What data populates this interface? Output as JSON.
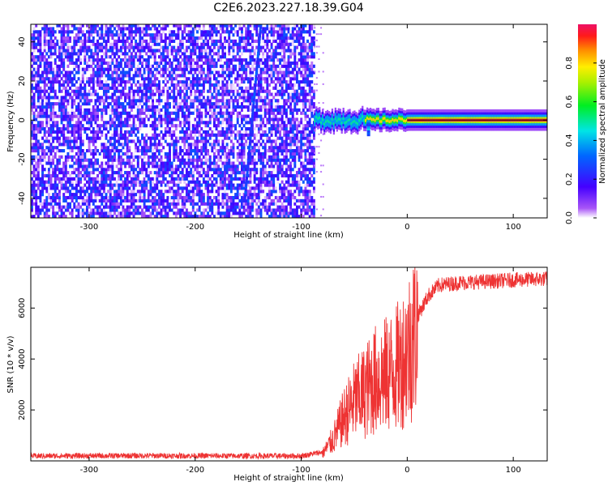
{
  "title": "C2E6.2023.227.18.39.G04",
  "chart_data": [
    {
      "type": "heatmap",
      "xlabel": "Height of straight line (km)",
      "ylabel": "Frequency (Hz)",
      "xlim": [
        -355,
        132
      ],
      "ylim": [
        -50,
        49
      ],
      "xticks": [
        -300,
        -200,
        -100,
        0,
        100
      ],
      "yticks": [
        -40,
        -20,
        0,
        20,
        40
      ],
      "colorbar": {
        "label": "Normalized spectral amplitude",
        "range": [
          0,
          1
        ],
        "ticks": [
          0.0,
          0.2,
          0.4,
          0.6,
          0.8
        ],
        "colormap": "rainbow (white-violet-blue-cyan-green-yellow-red-magenta)"
      },
      "features": {
        "noise_region_x": [
          -355,
          -88
        ],
        "noise_amplitude": [
          0.0,
          0.3
        ],
        "carrier_frequency": 0,
        "carrier_segments": [
          {
            "x": [
              -88,
              -40
            ],
            "amplitude": 0.5
          },
          {
            "x": [
              -40,
              0
            ],
            "amplitude": 0.8
          },
          {
            "x": [
              0,
              132
            ],
            "amplitude": 0.95
          }
        ],
        "diagonal_streaks": [
          {
            "x": [
              -153,
              -138
            ],
            "freq": [
              -40,
              49
            ]
          }
        ]
      },
      "grid": false
    },
    {
      "type": "line",
      "xlabel": "Height of straight line (km)",
      "ylabel": "SNR (10 * v/v)",
      "xlim": [
        -355,
        132
      ],
      "ylim": [
        0,
        7600
      ],
      "xticks": [
        -300,
        -200,
        -100,
        0,
        100
      ],
      "yticks": [
        2000,
        4000,
        6000
      ],
      "color": "#ee3333",
      "series": [
        {
          "name": "",
          "x": [
            -355,
            -250,
            -150,
            -100,
            -80,
            -70,
            -60,
            -50,
            -40,
            -30,
            -20,
            -10,
            0,
            10,
            20,
            30,
            50,
            80,
            100,
            132
          ],
          "y": [
            150,
            160,
            150,
            150,
            300,
            900,
            1800,
            2500,
            2900,
            3400,
            3600,
            3900,
            4600,
            5700,
            6500,
            6900,
            7000,
            7050,
            7100,
            7150
          ]
        }
      ],
      "grid": false
    }
  ]
}
